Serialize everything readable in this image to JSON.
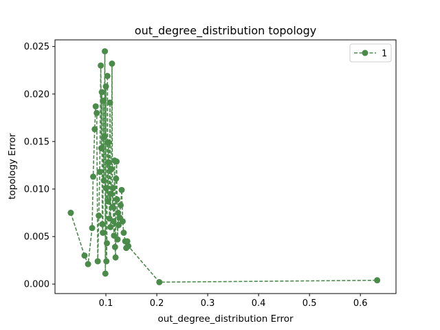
{
  "chart_data": {
    "type": "line",
    "title": "out_degree_distribution topology",
    "xlabel": "out_degree_distribution Error",
    "ylabel": "topology Error",
    "xlim": [
      0.0,
      0.67
    ],
    "ylim": [
      -0.001,
      0.0257
    ],
    "xticks": [
      0.1,
      0.2,
      0.3,
      0.4,
      0.5,
      0.6
    ],
    "xtick_labels": [
      "0.1",
      "0.2",
      "0.3",
      "0.4",
      "0.5",
      "0.6"
    ],
    "yticks": [
      0.0,
      0.005,
      0.01,
      0.015,
      0.02,
      0.025
    ],
    "ytick_labels": [
      "0.000",
      "0.005",
      "0.010",
      "0.015",
      "0.020",
      "0.025"
    ],
    "grid": false,
    "legend_position": "top-right",
    "series": [
      {
        "name": "1",
        "color": "#4a8b4a",
        "linestyle": "dashed",
        "marker": "circle",
        "x": [
          0.031,
          0.058,
          0.065,
          0.073,
          0.075,
          0.078,
          0.08,
          0.082,
          0.084,
          0.086,
          0.088,
          0.09,
          0.091,
          0.092,
          0.093,
          0.094,
          0.095,
          0.096,
          0.097,
          0.098,
          0.099,
          0.1,
          0.1,
          0.101,
          0.102,
          0.103,
          0.104,
          0.105,
          0.106,
          0.107,
          0.108,
          0.109,
          0.11,
          0.111,
          0.112,
          0.113,
          0.114,
          0.115,
          0.116,
          0.117,
          0.118,
          0.119,
          0.12,
          0.121,
          0.122,
          0.123,
          0.124,
          0.125,
          0.127,
          0.129,
          0.131,
          0.133,
          0.135,
          0.138,
          0.14,
          0.142,
          0.144,
          0.205,
          0.633
        ],
        "y": [
          0.0075,
          0.003,
          0.0021,
          0.0059,
          0.0113,
          0.0163,
          0.0187,
          0.018,
          0.0024,
          0.0072,
          0.0118,
          0.023,
          0.0143,
          0.0202,
          0.0063,
          0.0054,
          0.0193,
          0.0109,
          0.0155,
          0.0245,
          0.0011,
          0.0208,
          0.0101,
          0.0024,
          0.0043,
          0.0219,
          0.0087,
          0.0149,
          0.0128,
          0.0069,
          0.0191,
          0.006,
          0.0095,
          0.0121,
          0.0232,
          0.0081,
          0.0101,
          0.0066,
          0.0051,
          0.013,
          0.0039,
          0.0028,
          0.0111,
          0.0129,
          0.0089,
          0.0047,
          0.0075,
          0.0062,
          0.007,
          0.0083,
          0.0099,
          0.0066,
          0.0054,
          0.0045,
          0.0038,
          0.0045,
          0.004,
          0.0002,
          0.0004
        ]
      }
    ]
  }
}
